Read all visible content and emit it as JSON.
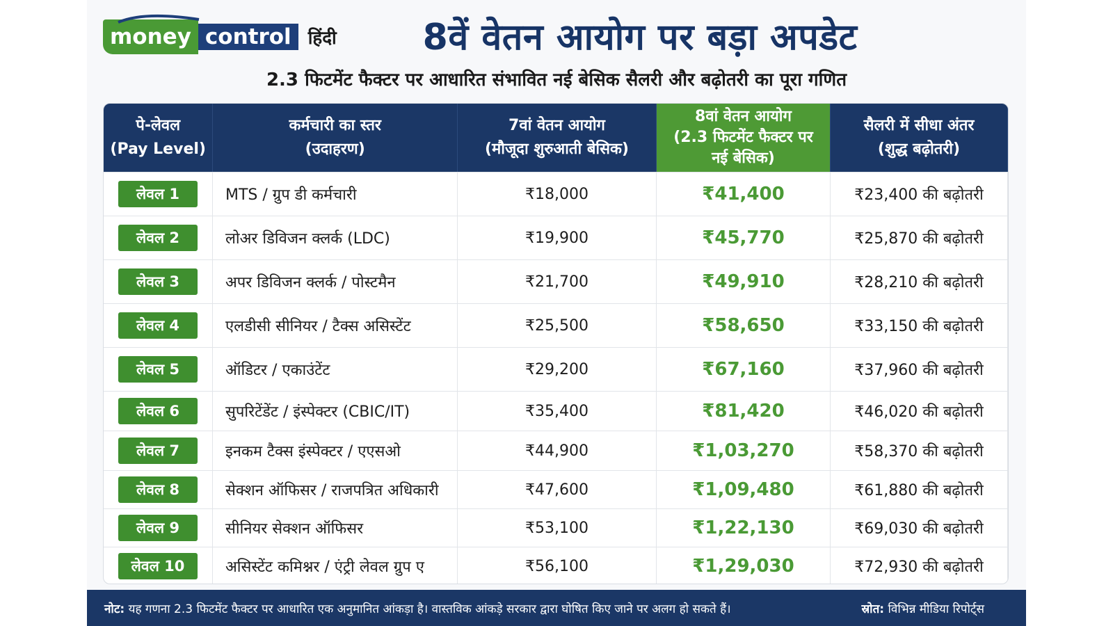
{
  "brand": {
    "logo_money": "money",
    "logo_control": "control",
    "logo_language": "हिंदी",
    "colors": {
      "green": "#4a9a35",
      "navy": "#1b3766"
    }
  },
  "header": {
    "title": "8वें वेतन आयोग पर बड़ा अपडेट",
    "subtitle": "2.3 फिटमेंट फैक्टर पर आधारित संभावित नई बेसिक सैलरी और बढ़ोतरी का पूरा गणित"
  },
  "table": {
    "columns": [
      {
        "line1": "पे-लेवल",
        "line2": "(Pay Level)",
        "line3": ""
      },
      {
        "line1": "कर्मचारी का स्तर",
        "line2": "(उदाहरण)",
        "line3": ""
      },
      {
        "line1": "7वां वेतन आयोग",
        "line2": "(मौजूदा शुरुआती बेसिक)",
        "line3": ""
      },
      {
        "line1": "8वां वेतन आयोग",
        "line2": "(2.3 फिटमेंट फैक्टर पर",
        "line3": "नई बेसिक)"
      },
      {
        "line1": "सैलरी में सीधा अंतर",
        "line2": "(शुद्ध बढ़ोतरी)",
        "line3": ""
      }
    ],
    "rows": [
      {
        "level": "लेवल 1",
        "role": "MTS / ग्रुप डी कर्मचारी",
        "old": "₹18,000",
        "new": "₹41,400",
        "diff": "₹23,400 की बढ़ोतरी"
      },
      {
        "level": "लेवल 2",
        "role": "लोअर डिविजन क्लर्क (LDC)",
        "old": "₹19,900",
        "new": "₹45,770",
        "diff": "₹25,870 की बढ़ोतरी"
      },
      {
        "level": "लेवल 3",
        "role": "अपर डिविजन क्लर्क / पोस्टमैन",
        "old": "₹21,700",
        "new": "₹49,910",
        "diff": "₹28,210 की बढ़ोतरी"
      },
      {
        "level": "लेवल 4",
        "role": "एलडीसी सीनियर / टैक्स असिस्टेंट",
        "old": "₹25,500",
        "new": "₹58,650",
        "diff": "₹33,150 की बढ़ोतरी"
      },
      {
        "level": "लेवल 5",
        "role": "ऑडिटर / एकाउंटेंट",
        "old": "₹29,200",
        "new": "₹67,160",
        "diff": "₹37,960 की बढ़ोतरी"
      },
      {
        "level": "लेवल 6",
        "role": "सुपरिटेंडेंट / इंस्पेक्टर (CBIC/IT)",
        "old": "₹35,400",
        "new": "₹81,420",
        "diff": "₹46,020 की बढ़ोतरी"
      },
      {
        "level": "लेवल 7",
        "role": "इनकम टैक्स इंस्पेक्टर / एएसओ",
        "old": "₹44,900",
        "new": "₹1,03,270",
        "diff": "₹58,370 की बढ़ोतरी"
      },
      {
        "level": "लेवल 8",
        "role": "सेक्शन ऑफिसर / राजपत्रित अधिकारी",
        "old": "₹47,600",
        "new": "₹1,09,480",
        "diff": "₹61,880 की बढ़ोतरी"
      },
      {
        "level": "लेवल 9",
        "role": "सीनियर सेक्शन ऑफिसर",
        "old": "₹53,100",
        "new": "₹1,22,130",
        "diff": "₹69,030 की बढ़ोतरी"
      },
      {
        "level": "लेवल 10",
        "role": "असिस्टेंट कमिश्नर / एंट्री लेवल ग्रुप ए",
        "old": "₹56,100",
        "new": "₹1,29,030",
        "diff": "₹72,930 की बढ़ोतरी"
      }
    ]
  },
  "footer": {
    "note_label": "नोट:",
    "note_text": "यह गणना 2.3 फिटमेंट फैक्टर पर आधारित एक अनुमानित आंकड़ा है। वास्तविक आंकड़े सरकार द्वारा घोषित किए जाने पर अलग हो सकते हैं।",
    "source_label": "स्रोत:",
    "source_text": "विभिन्न मीडिया रिपोर्ट्स"
  }
}
